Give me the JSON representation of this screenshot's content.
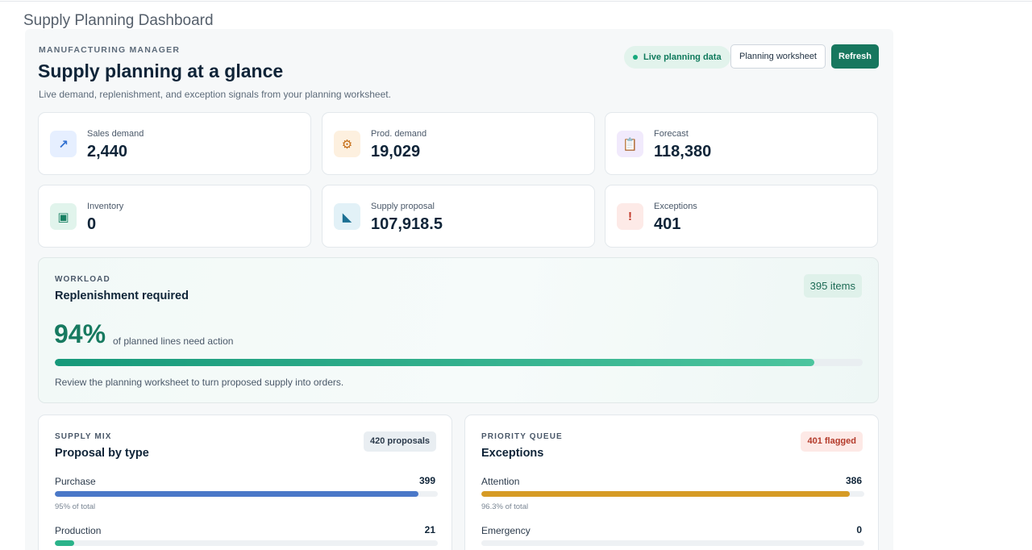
{
  "page": {
    "title": "Supply Planning Dashboard"
  },
  "header": {
    "eyebrow": "MANUFACTURING MANAGER",
    "title": "Supply planning at a glance",
    "subtitle": "Live demand, replenishment, and exception signals from your planning worksheet.",
    "live_label": "Live planning data",
    "worksheet_button": "Planning worksheet",
    "refresh_button": "Refresh"
  },
  "kpis": [
    {
      "label": "Sales demand",
      "value": "2,440",
      "icon": "trend-arrow-icon",
      "glyph": "↗",
      "color": "#2f6fd1",
      "bg": "#e6efff"
    },
    {
      "label": "Prod. demand",
      "value": "19,029",
      "icon": "gear-icon",
      "glyph": "⚙",
      "color": "#c46a10",
      "bg": "#fdf0df"
    },
    {
      "label": "Forecast",
      "value": "118,380",
      "icon": "clipboard-icon",
      "glyph": "📋",
      "color": "#8a4fc4",
      "bg": "#f1eafc"
    },
    {
      "label": "Inventory",
      "value": "0",
      "icon": "box-icon",
      "glyph": "▣",
      "color": "#188063",
      "bg": "#e1f4ec"
    },
    {
      "label": "Supply proposal",
      "value": "107,918.5",
      "icon": "chart-wedge-icon",
      "glyph": "◣",
      "color": "#1b6f93",
      "bg": "#e2f1f7"
    },
    {
      "label": "Exceptions",
      "value": "401",
      "icon": "exclamation-icon",
      "glyph": "!",
      "color": "#c23a2b",
      "bg": "#fdeae7"
    }
  ],
  "workload": {
    "eyebrow": "WORKLOAD",
    "title": "Replenishment required",
    "badge": "395 items",
    "percent_text": "94%",
    "percent_value": 0.94,
    "percent_note": "of planned lines need action",
    "note": "Review the planning worksheet to turn proposed supply into orders."
  },
  "supply_mix": {
    "eyebrow": "SUPPLY MIX",
    "title": "Proposal by type",
    "badge": "420 proposals",
    "rows": [
      {
        "label": "Purchase",
        "value": "399",
        "fraction": 0.95,
        "note": "95% of total",
        "color": "#4a78c8"
      },
      {
        "label": "Production",
        "value": "21",
        "fraction": 0.05,
        "note": "",
        "color": "#2bb38a"
      }
    ]
  },
  "priority_queue": {
    "eyebrow": "PRIORITY QUEUE",
    "title": "Exceptions",
    "badge": "401 flagged",
    "rows": [
      {
        "label": "Attention",
        "value": "386",
        "fraction": 0.963,
        "note": "96.3% of total",
        "color": "#d69b25"
      },
      {
        "label": "Emergency",
        "value": "0",
        "fraction": 0,
        "note": "",
        "color": "#d0473a"
      }
    ]
  },
  "colors": {
    "accent": "#17775e",
    "danger_badge_bg": "#fde9e6",
    "danger_badge_fg": "#b33a2a",
    "neutral_badge_bg": "#e9eef2",
    "neutral_badge_fg": "#2b3a4b"
  }
}
